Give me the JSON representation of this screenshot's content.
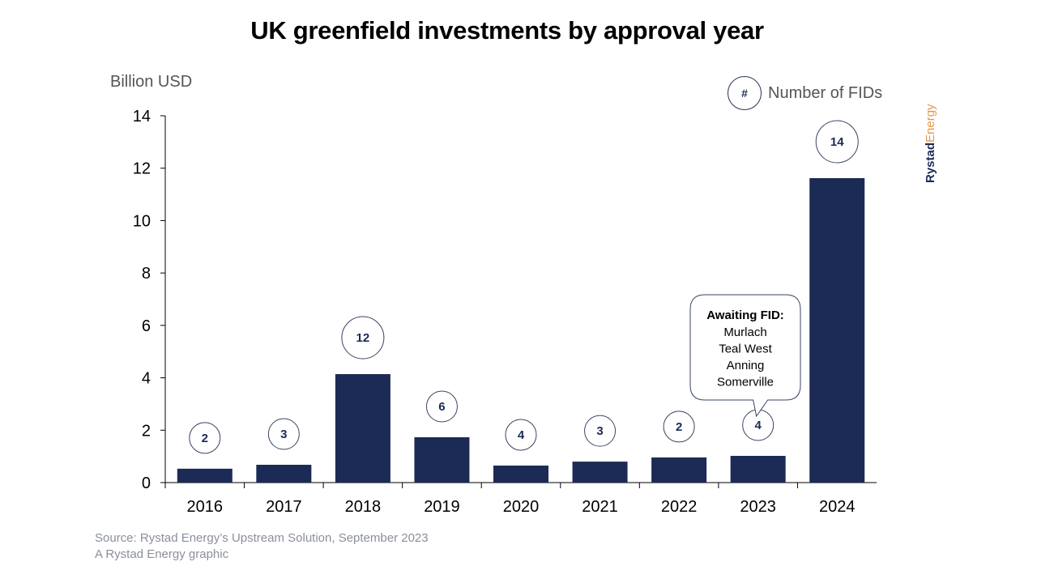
{
  "header": {
    "title": "UK greenfield investments by approval year"
  },
  "legend": {
    "symbol": "#",
    "label": "Number of FIDs"
  },
  "brand": {
    "part1": "Rystad",
    "part2": "Energy"
  },
  "footer": {
    "source": "Source: Rystad Energy’s Upstream Solution, September 2023",
    "credit": "A Rystad Energy graphic"
  },
  "colors": {
    "bar": "#1c2b55",
    "text": "#000000",
    "axis": "#000000",
    "muted": "#8a8f9c",
    "brand_accent": "#e8964e"
  },
  "chart_data": {
    "type": "bar",
    "title": "UK greenfield investments by approval year",
    "xlabel": "",
    "ylabel": "Billion USD",
    "ylim": [
      0,
      14
    ],
    "yticks": [
      0,
      2,
      4,
      6,
      8,
      10,
      12,
      14
    ],
    "grid": false,
    "categories": [
      "2016",
      "2017",
      "2018",
      "2019",
      "2020",
      "2021",
      "2022",
      "2023",
      "2024"
    ],
    "series": [
      {
        "name": "Investment (Billion USD)",
        "values": [
          0.53,
          0.68,
          4.14,
          1.73,
          0.65,
          0.8,
          0.96,
          1.02,
          11.62
        ]
      },
      {
        "name": "Number of FIDs",
        "values": [
          2,
          3,
          12,
          6,
          4,
          3,
          2,
          4,
          14
        ]
      }
    ],
    "legend": {
      "label": "Number of FIDs",
      "placement": "top-right"
    },
    "annotations": [
      {
        "category": "2023",
        "title": "Awaiting FID:",
        "lines": [
          "Murlach",
          "Teal West",
          "Anning",
          "Somerville"
        ]
      }
    ]
  }
}
